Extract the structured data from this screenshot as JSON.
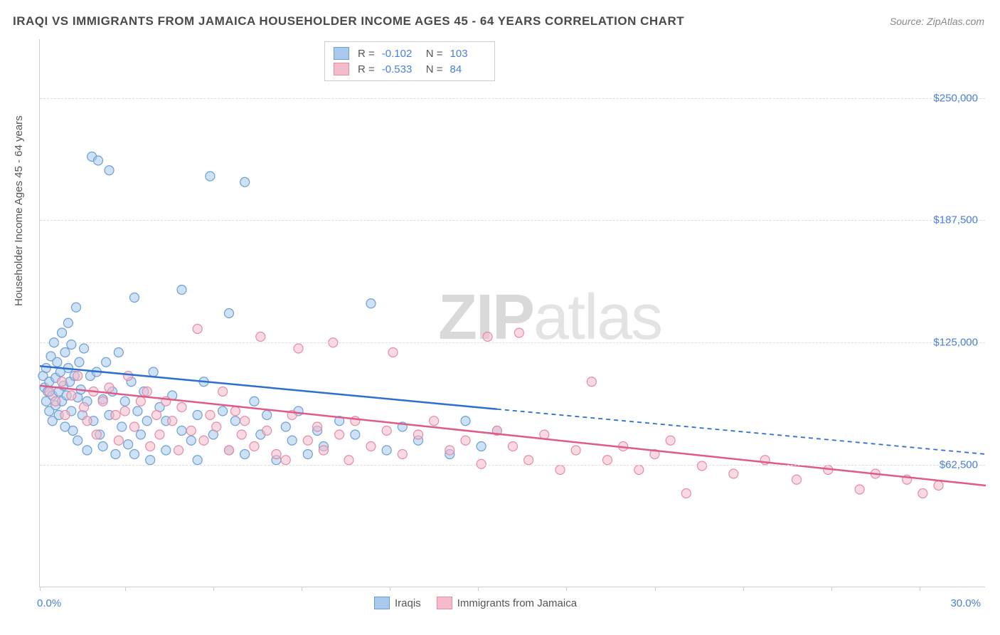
{
  "title": "IRAQI VS IMMIGRANTS FROM JAMAICA HOUSEHOLDER INCOME AGES 45 - 64 YEARS CORRELATION CHART",
  "source": "Source: ZipAtlas.com",
  "chart": {
    "type": "scatter",
    "y_axis_title": "Householder Income Ages 45 - 64 years",
    "xlim": [
      0,
      30
    ],
    "ylim": [
      0,
      280000
    ],
    "x_tick_positions": [
      0,
      2.7,
      5.5,
      8.3,
      11.1,
      13.9,
      16.7,
      19.5,
      22.3,
      25.1,
      27.9
    ],
    "x_label_start": "0.0%",
    "x_label_end": "30.0%",
    "y_ticks": [
      {
        "v": 62500,
        "label": "$62,500"
      },
      {
        "v": 125000,
        "label": "$125,000"
      },
      {
        "v": 187500,
        "label": "$187,500"
      },
      {
        "v": 250000,
        "label": "$250,000"
      }
    ],
    "grid_color": "#dddddd",
    "background_color": "#ffffff",
    "marker_radius": 6.5,
    "marker_stroke_width": 1.2,
    "series": [
      {
        "name": "Iraqis",
        "color_fill": "#a8c8ec",
        "color_stroke": "#6b9fd8",
        "fill_opacity": 0.55,
        "R": "-0.102",
        "N": "103",
        "trend": {
          "x1": 0,
          "y1": 113000,
          "x2_solid": 14.5,
          "y2_solid": 91000,
          "x2": 30,
          "y2": 68000,
          "color": "#2d6fd0",
          "width": 2.5
        },
        "points": [
          [
            0.1,
            108000
          ],
          [
            0.15,
            102000
          ],
          [
            0.2,
            95000
          ],
          [
            0.2,
            112000
          ],
          [
            0.25,
            100000
          ],
          [
            0.3,
            105000
          ],
          [
            0.3,
            90000
          ],
          [
            0.35,
            118000
          ],
          [
            0.4,
            98000
          ],
          [
            0.4,
            85000
          ],
          [
            0.45,
            125000
          ],
          [
            0.5,
            107000
          ],
          [
            0.5,
            93000
          ],
          [
            0.55,
            115000
          ],
          [
            0.6,
            100000
          ],
          [
            0.6,
            88000
          ],
          [
            0.65,
            110000
          ],
          [
            0.7,
            130000
          ],
          [
            0.7,
            95000
          ],
          [
            0.75,
            103000
          ],
          [
            0.8,
            120000
          ],
          [
            0.8,
            82000
          ],
          [
            0.85,
            98000
          ],
          [
            0.9,
            112000
          ],
          [
            0.9,
            135000
          ],
          [
            0.95,
            105000
          ],
          [
            1.0,
            90000
          ],
          [
            1.0,
            124000
          ],
          [
            1.05,
            80000
          ],
          [
            1.1,
            108000
          ],
          [
            1.15,
            143000
          ],
          [
            1.2,
            97000
          ],
          [
            1.2,
            75000
          ],
          [
            1.25,
            115000
          ],
          [
            1.3,
            101000
          ],
          [
            1.35,
            88000
          ],
          [
            1.4,
            122000
          ],
          [
            1.5,
            70000
          ],
          [
            1.5,
            95000
          ],
          [
            1.6,
            108000
          ],
          [
            1.65,
            220000
          ],
          [
            1.7,
            85000
          ],
          [
            1.8,
            110000
          ],
          [
            1.85,
            218000
          ],
          [
            1.9,
            78000
          ],
          [
            2.0,
            96000
          ],
          [
            2.0,
            72000
          ],
          [
            2.1,
            115000
          ],
          [
            2.2,
            213000
          ],
          [
            2.2,
            88000
          ],
          [
            2.3,
            100000
          ],
          [
            2.4,
            68000
          ],
          [
            2.5,
            120000
          ],
          [
            2.6,
            82000
          ],
          [
            2.7,
            95000
          ],
          [
            2.8,
            73000
          ],
          [
            2.9,
            105000
          ],
          [
            3.0,
            148000
          ],
          [
            3.0,
            68000
          ],
          [
            3.1,
            90000
          ],
          [
            3.2,
            78000
          ],
          [
            3.3,
            100000
          ],
          [
            3.4,
            85000
          ],
          [
            3.5,
            65000
          ],
          [
            3.6,
            110000
          ],
          [
            3.8,
            92000
          ],
          [
            4.0,
            70000
          ],
          [
            4.0,
            85000
          ],
          [
            4.2,
            98000
          ],
          [
            4.5,
            80000
          ],
          [
            4.5,
            152000
          ],
          [
            4.8,
            75000
          ],
          [
            5.0,
            88000
          ],
          [
            5.0,
            65000
          ],
          [
            5.2,
            105000
          ],
          [
            5.4,
            210000
          ],
          [
            5.5,
            78000
          ],
          [
            5.8,
            90000
          ],
          [
            6.0,
            140000
          ],
          [
            6.0,
            70000
          ],
          [
            6.2,
            85000
          ],
          [
            6.5,
            68000
          ],
          [
            6.5,
            207000
          ],
          [
            6.8,
            95000
          ],
          [
            7.0,
            78000
          ],
          [
            7.2,
            88000
          ],
          [
            7.5,
            65000
          ],
          [
            7.8,
            82000
          ],
          [
            8.0,
            75000
          ],
          [
            8.2,
            90000
          ],
          [
            8.5,
            68000
          ],
          [
            8.8,
            80000
          ],
          [
            9.0,
            72000
          ],
          [
            9.5,
            85000
          ],
          [
            10.0,
            78000
          ],
          [
            10.5,
            145000
          ],
          [
            11.0,
            70000
          ],
          [
            11.5,
            82000
          ],
          [
            12.0,
            75000
          ],
          [
            13.0,
            68000
          ],
          [
            13.5,
            85000
          ],
          [
            14.0,
            72000
          ],
          [
            14.5,
            80000
          ]
        ]
      },
      {
        "name": "Immigants from Jamaica",
        "legend_label": "Immigrants from Jamaica",
        "color_fill": "#f4bccb",
        "color_stroke": "#e68aa5",
        "fill_opacity": 0.55,
        "R": "-0.533",
        "N": "84",
        "trend": {
          "x1": 0,
          "y1": 103000,
          "x2_solid": 30,
          "y2_solid": 52000,
          "x2": 30,
          "y2": 52000,
          "color": "#e05a87",
          "width": 2.5
        },
        "points": [
          [
            0.3,
            100000
          ],
          [
            0.5,
            95000
          ],
          [
            0.7,
            105000
          ],
          [
            0.8,
            88000
          ],
          [
            1.0,
            98000
          ],
          [
            1.2,
            108000
          ],
          [
            1.4,
            92000
          ],
          [
            1.5,
            85000
          ],
          [
            1.7,
            100000
          ],
          [
            1.8,
            78000
          ],
          [
            2.0,
            95000
          ],
          [
            2.2,
            102000
          ],
          [
            2.4,
            88000
          ],
          [
            2.5,
            75000
          ],
          [
            2.7,
            90000
          ],
          [
            2.8,
            108000
          ],
          [
            3.0,
            82000
          ],
          [
            3.2,
            95000
          ],
          [
            3.4,
            100000
          ],
          [
            3.5,
            72000
          ],
          [
            3.7,
            88000
          ],
          [
            3.8,
            78000
          ],
          [
            4.0,
            95000
          ],
          [
            4.2,
            85000
          ],
          [
            4.4,
            70000
          ],
          [
            4.5,
            92000
          ],
          [
            4.8,
            80000
          ],
          [
            5.0,
            132000
          ],
          [
            5.2,
            75000
          ],
          [
            5.4,
            88000
          ],
          [
            5.6,
            82000
          ],
          [
            5.8,
            100000
          ],
          [
            6.0,
            70000
          ],
          [
            6.2,
            90000
          ],
          [
            6.4,
            78000
          ],
          [
            6.5,
            85000
          ],
          [
            6.8,
            72000
          ],
          [
            7.0,
            128000
          ],
          [
            7.2,
            80000
          ],
          [
            7.5,
            68000
          ],
          [
            7.8,
            65000
          ],
          [
            8.0,
            88000
          ],
          [
            8.2,
            122000
          ],
          [
            8.5,
            75000
          ],
          [
            8.8,
            82000
          ],
          [
            9.0,
            70000
          ],
          [
            9.3,
            125000
          ],
          [
            9.5,
            78000
          ],
          [
            9.8,
            65000
          ],
          [
            10.0,
            85000
          ],
          [
            10.5,
            72000
          ],
          [
            11.0,
            80000
          ],
          [
            11.2,
            120000
          ],
          [
            11.5,
            68000
          ],
          [
            12.0,
            78000
          ],
          [
            12.5,
            85000
          ],
          [
            13.0,
            70000
          ],
          [
            13.5,
            75000
          ],
          [
            14.0,
            63000
          ],
          [
            14.2,
            128000
          ],
          [
            14.5,
            80000
          ],
          [
            15.0,
            72000
          ],
          [
            15.2,
            130000
          ],
          [
            15.5,
            65000
          ],
          [
            16.0,
            78000
          ],
          [
            16.5,
            60000
          ],
          [
            17.0,
            70000
          ],
          [
            17.5,
            105000
          ],
          [
            18.0,
            65000
          ],
          [
            18.5,
            72000
          ],
          [
            19.0,
            60000
          ],
          [
            19.5,
            68000
          ],
          [
            20.0,
            75000
          ],
          [
            20.5,
            48000
          ],
          [
            21.0,
            62000
          ],
          [
            22.0,
            58000
          ],
          [
            23.0,
            65000
          ],
          [
            24.0,
            55000
          ],
          [
            25.0,
            60000
          ],
          [
            26.0,
            50000
          ],
          [
            26.5,
            58000
          ],
          [
            27.5,
            55000
          ],
          [
            28.0,
            48000
          ],
          [
            28.5,
            52000
          ]
        ]
      }
    ],
    "watermark": {
      "text1": "ZIP",
      "text2": "atlas"
    }
  },
  "legend": {
    "s1_label": "Iraqis",
    "s2_label": "Immigrants from Jamaica"
  },
  "stats_labels": {
    "R": "R =",
    "N": "N ="
  }
}
